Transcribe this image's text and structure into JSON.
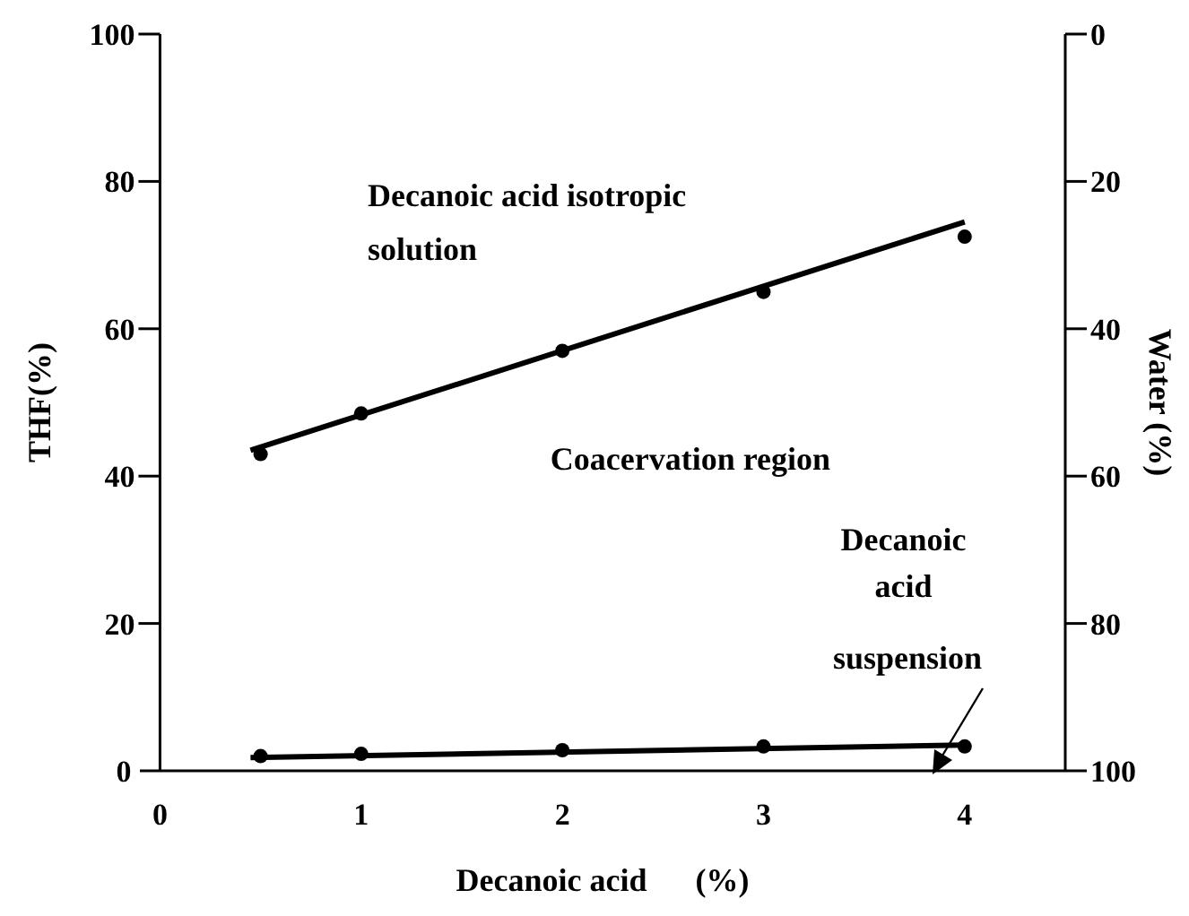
{
  "chart_data": {
    "type": "scatter",
    "xlabel": "Decanoic acid      (%)",
    "ylabel": "THF(%)",
    "y2label": "Water (%)",
    "xlim": [
      -0.1,
      4.5
    ],
    "xticks": [
      0,
      1,
      2,
      3,
      4
    ],
    "ylim": [
      0,
      100
    ],
    "yticks": [
      0,
      20,
      40,
      60,
      80,
      100
    ],
    "y2lim": [
      100,
      0
    ],
    "y2ticks": [
      0,
      20,
      40,
      60,
      80,
      100
    ],
    "marker": "circle",
    "grid": false,
    "series": [
      {
        "color": "#000000",
        "x": [
          0.5,
          1,
          2,
          3,
          4
        ],
        "values": [
          43,
          48.5,
          57,
          65,
          72.5
        ]
      },
      {
        "color": "#000000",
        "x": [
          0.5,
          1,
          2,
          3,
          4
        ],
        "values": [
          2,
          2.3,
          2.8,
          3.3,
          3.3
        ]
      },
      {
        "type": "line",
        "marker": "none",
        "color": "#000000",
        "x": [
          0.45,
          4
        ],
        "values": [
          43.5,
          74.5
        ]
      },
      {
        "type": "line",
        "marker": "none",
        "color": "#000000",
        "x": [
          0.45,
          4
        ],
        "values": [
          1.8,
          3.5
        ]
      }
    ],
    "annotations": [
      "Decanoic acid isotropic solution",
      "Coacervation region",
      "Decanoic acid suspension"
    ]
  }
}
